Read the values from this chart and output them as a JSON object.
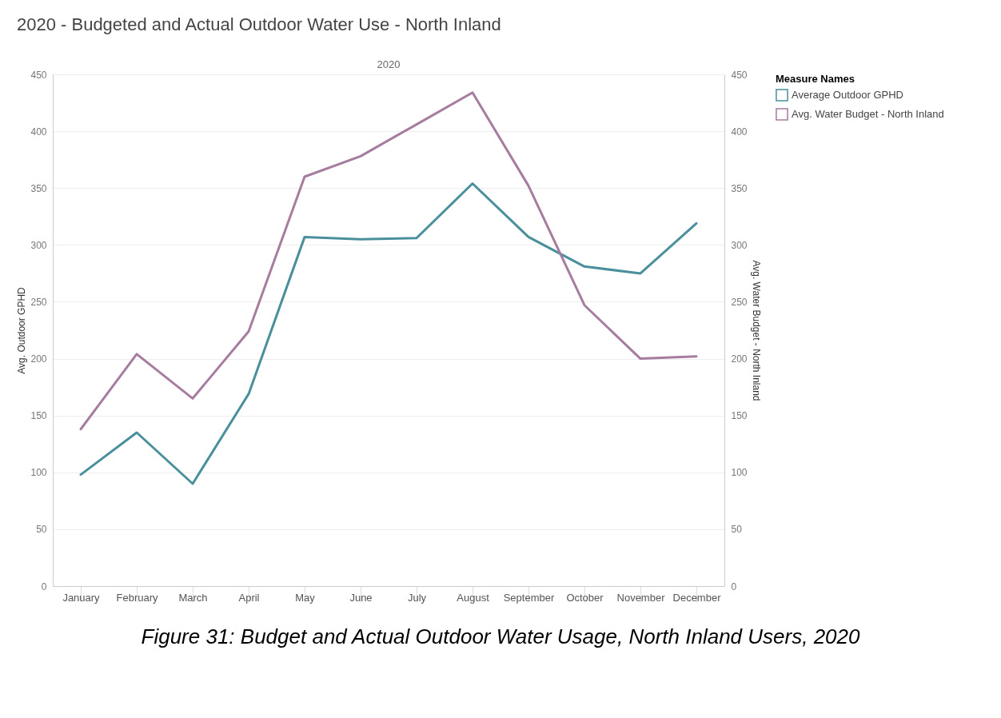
{
  "chart_data": {
    "type": "line",
    "title": "2020 - Budgeted and Actual Outdoor Water Use - North Inland",
    "subtitle": "2020",
    "ylabel": "Avg. Outdoor GPHD",
    "y2label": "Avg. Water Budget - North Inland",
    "legend_title": "Measure Names",
    "categories": [
      "January",
      "February",
      "March",
      "April",
      "May",
      "June",
      "July",
      "August",
      "September",
      "October",
      "November",
      "December"
    ],
    "series": [
      {
        "name": "Average Outdoor GPHD",
        "color": "#4a8f9c",
        "values": [
          98,
          135,
          90,
          169,
          307,
          305,
          306,
          354,
          307,
          281,
          275,
          319
        ]
      },
      {
        "name": "Avg. Water Budget - North Inland",
        "color": "#a67c9f",
        "axis": "y2",
        "values": [
          138,
          204,
          165,
          224,
          360,
          378,
          406,
          434,
          352,
          247,
          200,
          202
        ]
      }
    ],
    "ylim": [
      0,
      450
    ],
    "yticks": [
      0,
      50,
      100,
      150,
      200,
      250,
      300,
      350,
      400,
      450
    ],
    "y2lim": [
      0,
      450
    ],
    "y2ticks": [
      0,
      50,
      100,
      150,
      200,
      250,
      300,
      350,
      400,
      450
    ],
    "grid": "y",
    "legend": "top right",
    "annotations": [
      "Figure 31: Budget and Actual Outdoor Water Usage, North Inland Users, 2020"
    ]
  }
}
